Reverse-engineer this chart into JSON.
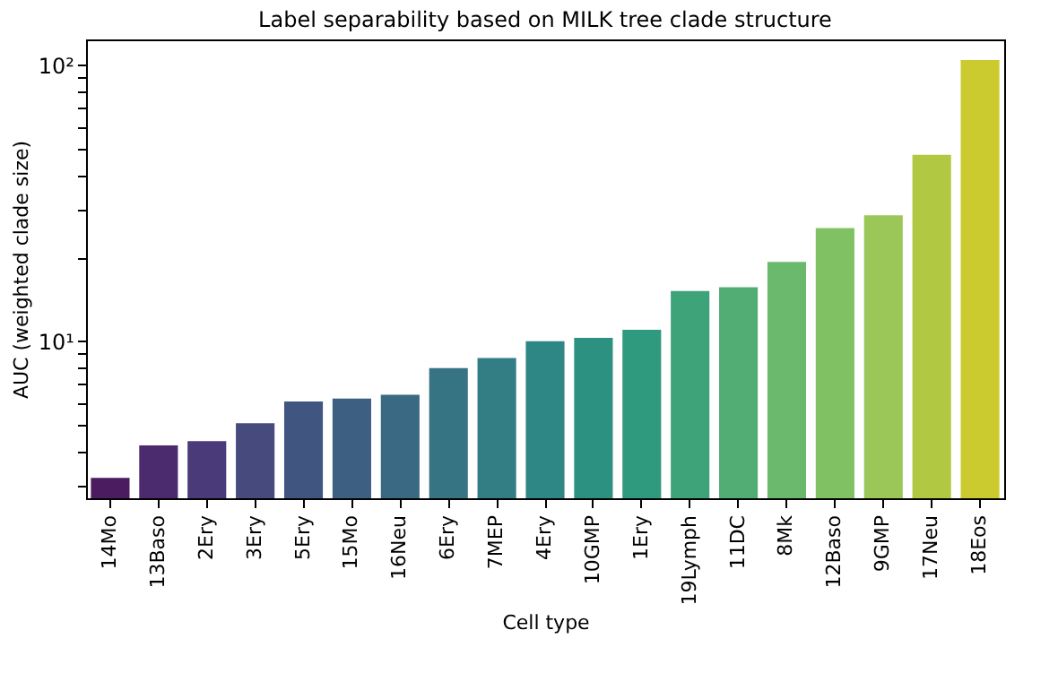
{
  "chart_data": {
    "type": "bar",
    "title": "Label separability based on MILK tree clade structure",
    "xlabel": "Cell type",
    "ylabel": "AUC (weighted clade size)",
    "categories": [
      "14Mo",
      "13Baso",
      "2Ery",
      "3Ery",
      "5Ery",
      "15Mo",
      "16Neu",
      "6Ery",
      "7MEP",
      "4Ery",
      "10GMP",
      "1Ery",
      "19Lymph",
      "11DC",
      "8Mk",
      "12Baso",
      "9GMP",
      "17Neu",
      "18Eos"
    ],
    "values": [
      3.2,
      4.2,
      4.35,
      5.05,
      6.05,
      6.2,
      6.4,
      8.0,
      8.7,
      10.0,
      10.3,
      11.0,
      15.2,
      15.7,
      19.4,
      25.7,
      28.6,
      47.4,
      104.5
    ],
    "colors": [
      "#4b1c5f",
      "#4b2a6e",
      "#4b3a79",
      "#464a7d",
      "#415581",
      "#3d5f82",
      "#3a6983",
      "#367484",
      "#337e85",
      "#2f8785",
      "#2d9182",
      "#2f9a7d",
      "#3ea378",
      "#52ad75",
      "#6ab96d",
      "#80c163",
      "#9ac757",
      "#b1c942",
      "#cbcb2f"
    ],
    "log": "y",
    "ylim": [
      2.7,
      124
    ],
    "yticks": [
      {
        "value": 3,
        "label": null
      },
      {
        "value": 4,
        "label": null
      },
      {
        "value": 5,
        "label": null
      },
      {
        "value": 6,
        "label": null
      },
      {
        "value": 7,
        "label": null
      },
      {
        "value": 8,
        "label": null
      },
      {
        "value": 9,
        "label": null
      },
      {
        "value": 10,
        "label": "10¹"
      },
      {
        "value": 20,
        "label": null
      },
      {
        "value": 30,
        "label": null
      },
      {
        "value": 40,
        "label": null
      },
      {
        "value": 50,
        "label": null
      },
      {
        "value": 60,
        "label": null
      },
      {
        "value": 70,
        "label": null
      },
      {
        "value": 80,
        "label": null
      },
      {
        "value": 90,
        "label": null
      },
      {
        "value": 100,
        "label": "10²"
      }
    ],
    "grid": false,
    "legend": false
  }
}
